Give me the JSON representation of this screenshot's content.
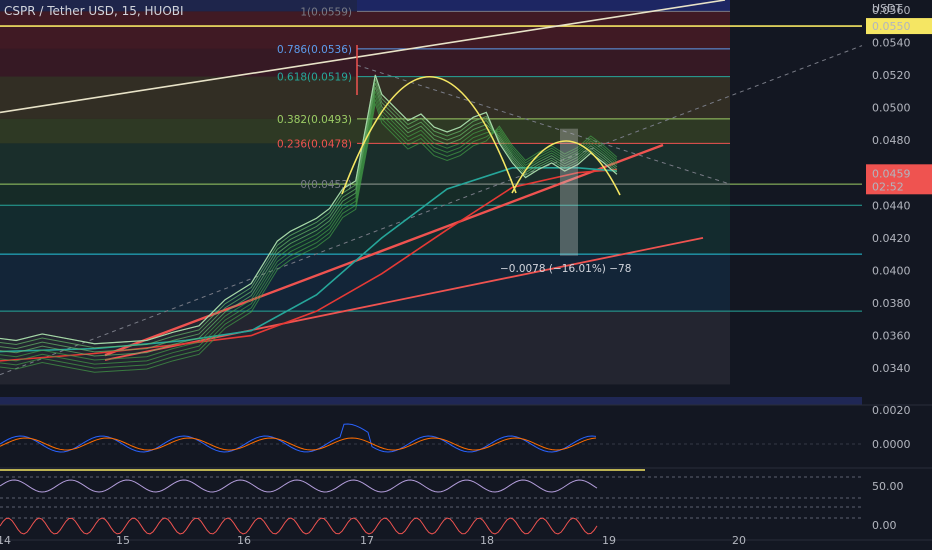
{
  "header": {
    "title": "CSPR / Tether USD, 15, HUOBI"
  },
  "chart_data": {
    "type": "line",
    "symbol": "CSPR / Tether USD",
    "interval": "15",
    "exchange": "HUOBI",
    "currency": "USDT",
    "ylim": [
      0.0318,
      0.0566
    ],
    "x_ticks": [
      "14",
      "15",
      "16",
      "17",
      "18",
      "19",
      "20"
    ],
    "x_range_days": [
      14.0,
      20.6
    ],
    "y_ticks": [
      "0.0560",
      "0.0540",
      "0.0520",
      "0.0500",
      "0.0480",
      "0.0460",
      "0.0440",
      "0.0420",
      "0.0400",
      "0.0380",
      "0.0360",
      "0.0340"
    ],
    "current_price": "0.0459",
    "countdown": "02:52",
    "alert_price": "0.0550",
    "fib_levels": [
      {
        "label": "1(0.0559)",
        "price": 0.0559,
        "color": "#787b86"
      },
      {
        "label": "0.786(0.0536)",
        "price": 0.0536,
        "color": "#5d9cec"
      },
      {
        "label": "0.618(0.0519)",
        "price": 0.0519,
        "color": "#26a69a"
      },
      {
        "label": "0.382(0.0493)",
        "price": 0.0493,
        "color": "#9ccc65"
      },
      {
        "label": "0.236(0.0478)",
        "price": 0.0478,
        "color": "#ef5350"
      },
      {
        "label": "0(0.0453)",
        "price": 0.0453,
        "color": "#787b86"
      }
    ],
    "measure_label": "−0.0078 (−16.01%) −78",
    "price_series": {
      "x": [
        14.0,
        14.2,
        14.4,
        14.6,
        14.8,
        15.0,
        15.2,
        15.4,
        15.6,
        15.8,
        16.0,
        16.1,
        16.2,
        16.3,
        16.4,
        16.5,
        16.6,
        16.7,
        16.8,
        16.9,
        16.95,
        17.0,
        17.1,
        17.2,
        17.3,
        17.4,
        17.5,
        17.6,
        17.7,
        17.8,
        17.9,
        18.0,
        18.1,
        18.2,
        18.3,
        18.4,
        18.5,
        18.6,
        18.7,
        18.8
      ],
      "y": [
        0.0359,
        0.0357,
        0.0361,
        0.0358,
        0.0355,
        0.0356,
        0.0357,
        0.0362,
        0.0366,
        0.0382,
        0.0392,
        0.0405,
        0.0418,
        0.0424,
        0.0428,
        0.0432,
        0.0438,
        0.045,
        0.0455,
        0.0498,
        0.052,
        0.0508,
        0.05,
        0.0492,
        0.0496,
        0.0488,
        0.0485,
        0.0488,
        0.0494,
        0.0497,
        0.0478,
        0.0466,
        0.0457,
        0.0462,
        0.0466,
        0.0461,
        0.0465,
        0.0472,
        0.0466,
        0.0459
      ]
    },
    "osc1_ticks": [
      "0.0020",
      "0.0000"
    ],
    "osc2_ticks": [
      "50.00",
      "0.00"
    ]
  }
}
